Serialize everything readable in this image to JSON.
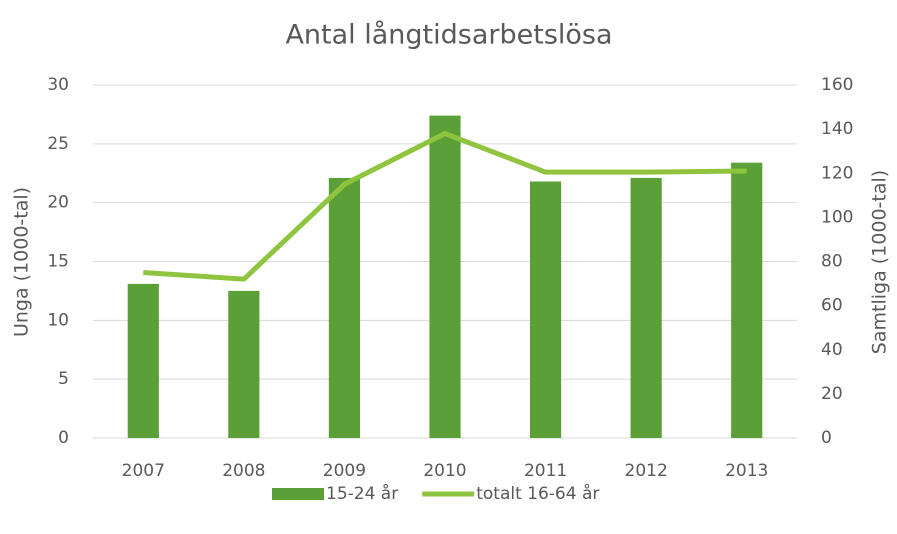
{
  "chart_data": {
    "type": "bar_line",
    "title": "Antal långtidsarbetslösa",
    "y_label": "Unga (1000-tal)",
    "y2_label": "Samtliga (1000-tal)",
    "categories": [
      "2007",
      "2008",
      "2009",
      "2010",
      "2011",
      "2012",
      "2013"
    ],
    "series": [
      {
        "name": "15-24 år",
        "type": "bar",
        "color": "#5b9f37",
        "values": [
          13.1,
          12.5,
          22.1,
          27.4,
          21.8,
          22.1,
          23.4
        ]
      },
      {
        "name": "totalt 16-64 år",
        "type": "line",
        "axis": "y2",
        "color": "#8fc43f",
        "values": [
          75,
          72,
          115,
          138,
          120.5,
          120.5,
          121
        ]
      }
    ],
    "ylim": [
      0,
      30
    ],
    "yticks": [
      0,
      5,
      10,
      15,
      20,
      25,
      30
    ],
    "y2lim": [
      0,
      160
    ],
    "y2ticks": [
      0,
      20,
      40,
      60,
      80,
      100,
      120,
      140,
      160
    ],
    "grid": true,
    "legend": "bottom"
  }
}
